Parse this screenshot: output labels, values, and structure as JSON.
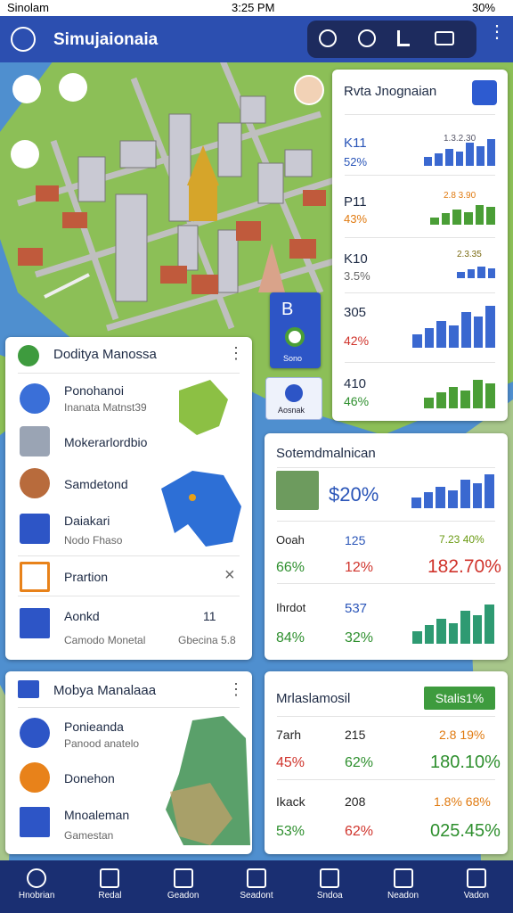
{
  "status": {
    "carrier": "Sinolam",
    "time": "3:25 PM",
    "battery": "30%"
  },
  "header": {
    "title": "Simujaionaia"
  },
  "insights": {
    "title": "Rvta Jnognaian",
    "rows": [
      {
        "label": "K11",
        "pct": "52%",
        "top": "1.3.2.30"
      },
      {
        "label": "P11",
        "pct": "43%",
        "top": "2.8 3.90"
      },
      {
        "label": "K10",
        "pct": "3.5%",
        "top": "2.3.35"
      },
      {
        "label": "305",
        "pct": "42%"
      },
      {
        "label": "410",
        "pct": "46%"
      }
    ]
  },
  "tile": {
    "label": "B",
    "caption": "Sono"
  },
  "tile_button": "Aosnak",
  "card1": {
    "title": "Doditya Manossa",
    "items": [
      {
        "title": "Ponohanoi",
        "sub": "Inanata Matnst39"
      },
      {
        "title": "Mokerarlordbio"
      },
      {
        "title": "Samdetond"
      },
      {
        "title": "Daiakari",
        "sub": "Nodo Fhaso"
      },
      {
        "title": "Prartion"
      },
      {
        "title": "Aonkd",
        "sub": "Camodo Monetal",
        "value": "11",
        "note": "Gbecina 5.8"
      }
    ]
  },
  "card2": {
    "title": "Sotemdmalnican",
    "headline": "$20%",
    "rows": [
      [
        "Ooah",
        "125",
        "7.23 40%"
      ],
      [
        "66%",
        "12%",
        "182.70%"
      ],
      [
        "Ihrdot",
        "537"
      ],
      [
        "84%",
        "32%"
      ]
    ]
  },
  "card3": {
    "title": "Mobya Manalaaa",
    "items": [
      {
        "title": "Ponieanda",
        "sub": "Panood anatelo"
      },
      {
        "title": "Donehon"
      },
      {
        "title": "Mnoaleman",
        "sub": "Gamestan"
      }
    ]
  },
  "card4": {
    "title": "Mrlaslamosil",
    "badge": "Stalis1%",
    "rows": [
      [
        "7arh",
        "215",
        "2.8 19%"
      ],
      [
        "45%",
        "62%",
        "180.10%"
      ],
      [
        "Ikack",
        "208",
        "1.8% 68%"
      ],
      [
        "53%",
        "62%",
        "025.45%"
      ]
    ]
  },
  "nav": [
    "Hnobrian",
    "Redal",
    "Geadon",
    "Seadont",
    "Sndoa",
    "Neadon",
    "Vadon"
  ]
}
